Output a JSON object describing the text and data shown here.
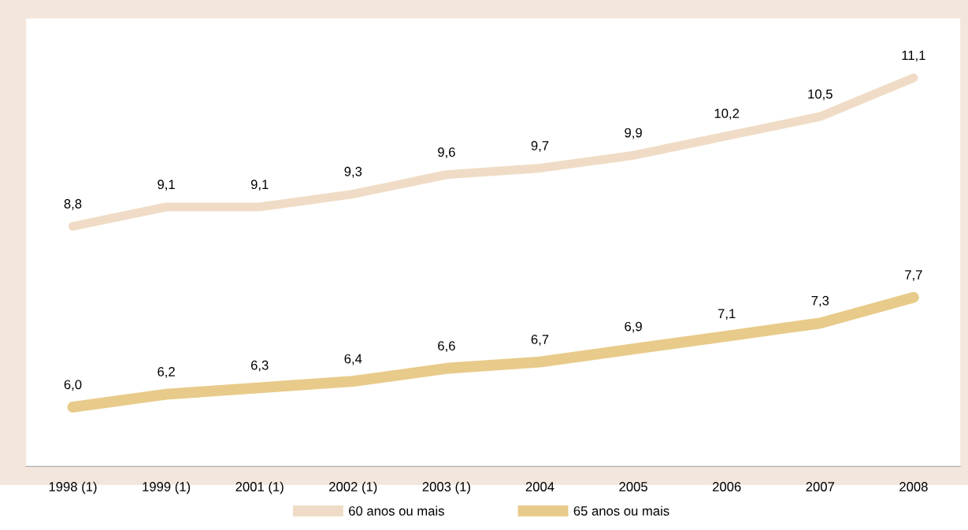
{
  "chart_data": {
    "type": "line",
    "categories": [
      "1998 (1)",
      "1999 (1)",
      "2001 (1)",
      "2002 (1)",
      "2003 (1)",
      "2004",
      "2005",
      "2006",
      "2007",
      "2008"
    ],
    "series": [
      {
        "name": "60 anos ou mais",
        "color": "#f0dcc6",
        "values": [
          8.8,
          9.1,
          9.1,
          9.3,
          9.6,
          9.7,
          9.9,
          10.2,
          10.5,
          11.1
        ],
        "value_labels": [
          "8,8",
          "9,1",
          "9,1",
          "9,3",
          "9,6",
          "9,7",
          "9,9",
          "10,2",
          "10,5",
          "11,1"
        ]
      },
      {
        "name": "65 anos ou mais",
        "color": "#e8cb8a",
        "values": [
          6.0,
          6.2,
          6.3,
          6.4,
          6.6,
          6.7,
          6.9,
          7.1,
          7.3,
          7.7
        ],
        "value_labels": [
          "6,0",
          "6,2",
          "6,3",
          "6,4",
          "6,6",
          "6,7",
          "6,9",
          "7,1",
          "7,3",
          "7,7"
        ]
      }
    ],
    "tick_labels": "x",
    "grid": false,
    "legend": "bottom",
    "line_style": "solid"
  }
}
